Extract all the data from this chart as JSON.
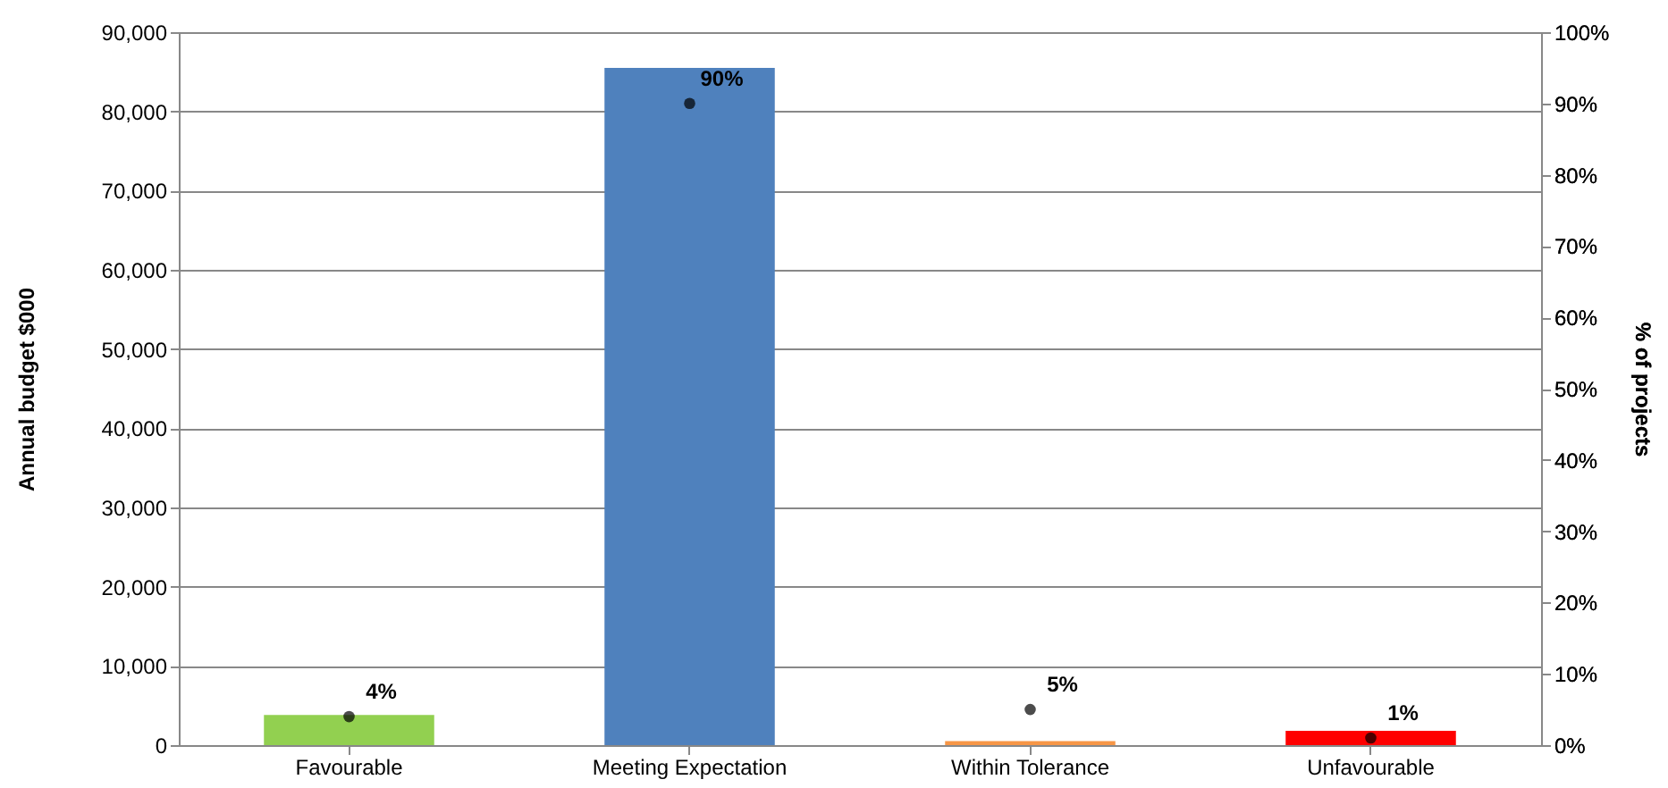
{
  "chart_data": {
    "type": "bar",
    "ylabel": "Annual budget $000",
    "y2label": "% of projects",
    "categories": [
      "Favourable",
      "Meeting Expectation",
      "Within Tolerance",
      "Unfavourable"
    ],
    "values": [
      3800,
      85500,
      500,
      1800
    ],
    "colors": [
      "#92d050",
      "#4f81bd",
      "#f79646",
      "#ff0000"
    ],
    "series": [
      {
        "type": "scatter",
        "axis": "y2",
        "color": "#000000",
        "values": [
          4,
          90,
          5,
          1
        ],
        "value_labels": [
          "4%",
          "90%",
          "5%",
          "1%"
        ]
      }
    ],
    "ylim": [
      0,
      90000
    ],
    "yticks": [
      {
        "value": 0,
        "label": "0"
      },
      {
        "value": 10000,
        "label": "10,000"
      },
      {
        "value": 20000,
        "label": "20,000"
      },
      {
        "value": 30000,
        "label": "30,000"
      },
      {
        "value": 40000,
        "label": "40,000"
      },
      {
        "value": 50000,
        "label": "50,000"
      },
      {
        "value": 60000,
        "label": "60,000"
      },
      {
        "value": 70000,
        "label": "70,000"
      },
      {
        "value": 80000,
        "label": "80,000"
      },
      {
        "value": 90000,
        "label": "90,000"
      }
    ],
    "y2lim": [
      0,
      100
    ],
    "y2ticks": [
      {
        "value": 0,
        "label": "0%"
      },
      {
        "value": 10,
        "label": "10%"
      },
      {
        "value": 20,
        "label": "20%"
      },
      {
        "value": 30,
        "label": "30%"
      },
      {
        "value": 40,
        "label": "40%"
      },
      {
        "value": 50,
        "label": "50%"
      },
      {
        "value": 60,
        "label": "60%"
      },
      {
        "value": 70,
        "label": "70%"
      },
      {
        "value": 80,
        "label": "80%"
      },
      {
        "value": 90,
        "label": "90%"
      },
      {
        "value": 100,
        "label": "100%"
      }
    ],
    "grid": "y",
    "marker": "circle"
  }
}
